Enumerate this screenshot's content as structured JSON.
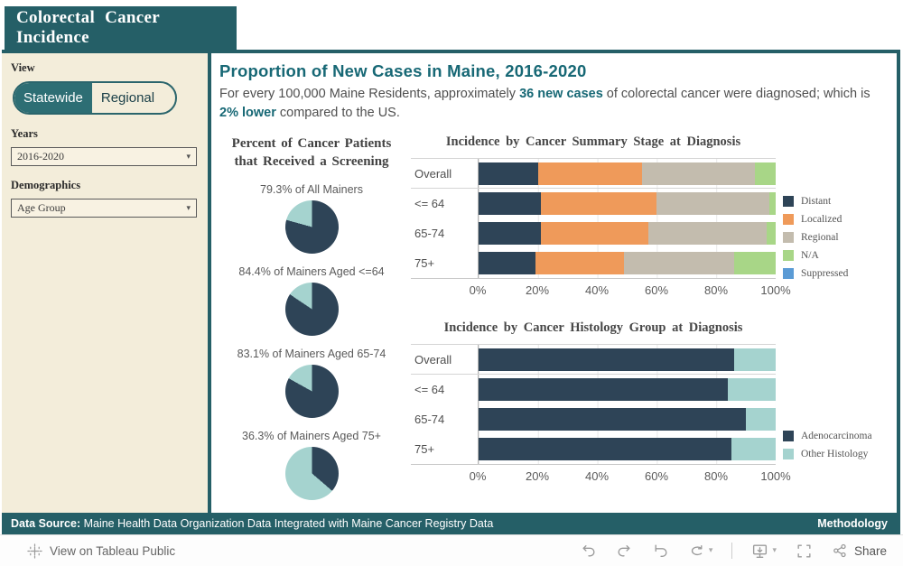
{
  "header": {
    "title": "Colorectal Cancer Incidence"
  },
  "sidebar": {
    "view_label": "View",
    "view_options": [
      {
        "label": "Statewide",
        "selected": true
      },
      {
        "label": "Regional",
        "selected": false
      }
    ],
    "years_label": "Years",
    "years_value": "2016-2020",
    "demographics_label": "Demographics",
    "demographics_value": "Age Group"
  },
  "main": {
    "title": "Proportion of New Cases in Maine, 2016-2020",
    "subtitle": {
      "p1": "For every 100,000 Maine Residents, approximately ",
      "b1": "36 new cases",
      "p2": " of colorectal cancer were diagnosed; which is ",
      "b2": "2% lower",
      "p3": " compared to the US."
    }
  },
  "colors": {
    "teal_frame": "#255f67",
    "toggle_active": "#2d6e74",
    "sidebar_cream": "#f3edda",
    "title_teal": "#176875",
    "navy": "#2e4457",
    "orange": "#ef9a5a",
    "tan": "#c3bcae",
    "green": "#a8d687",
    "blue": "#5b9bd5",
    "light_teal": "#a5d3cf"
  },
  "chart_data": [
    {
      "type": "pie",
      "title": "Percent of Cancer Patients that Received a Screening",
      "slice_colors": {
        "screened": "#2e4457",
        "not_screened": "#a5d3cf"
      },
      "pies": [
        {
          "label": "79.3% of All Mainers",
          "value": 79.3
        },
        {
          "label": "84.4% of Mainers Aged <=64",
          "value": 84.4
        },
        {
          "label": "83.1% of Mainers Aged 65-74",
          "value": 83.1
        },
        {
          "label": "36.3% of Mainers Aged 75+",
          "value": 36.3
        }
      ]
    },
    {
      "type": "bar",
      "stacked": true,
      "orientation": "horizontal",
      "title": "Incidence by Cancer Summary Stage at Diagnosis",
      "categories": [
        "Overall",
        "<= 64",
        "65-74",
        "75+"
      ],
      "series": [
        {
          "name": "Distant",
          "color": "#2e4457",
          "values": [
            20,
            21,
            21,
            19
          ]
        },
        {
          "name": "Localized",
          "color": "#ef9a5a",
          "values": [
            35,
            39,
            36,
            30
          ]
        },
        {
          "name": "Regional",
          "color": "#c3bcae",
          "values": [
            38,
            38,
            40,
            37
          ]
        },
        {
          "name": "N/A",
          "color": "#a8d687",
          "values": [
            7,
            2,
            3,
            14
          ]
        },
        {
          "name": "Suppressed",
          "color": "#5b9bd5",
          "values": [
            0,
            0,
            0,
            0
          ]
        }
      ],
      "x_ticks": [
        "0%",
        "20%",
        "40%",
        "60%",
        "80%",
        "100%"
      ],
      "xlim": [
        0,
        100
      ],
      "legend_position": "right"
    },
    {
      "type": "bar",
      "stacked": true,
      "orientation": "horizontal",
      "title": "Incidence by Cancer Histology Group at Diagnosis",
      "categories": [
        "Overall",
        "<= 64",
        "65-74",
        "75+"
      ],
      "series": [
        {
          "name": "Adenocarcinoma",
          "color": "#2e4457",
          "values": [
            86,
            84,
            90,
            85
          ]
        },
        {
          "name": "Other Histology",
          "color": "#a5d3cf",
          "values": [
            14,
            16,
            10,
            15
          ]
        }
      ],
      "x_ticks": [
        "0%",
        "20%",
        "40%",
        "60%",
        "80%",
        "100%"
      ],
      "xlim": [
        0,
        100
      ],
      "legend_position": "right"
    }
  ],
  "footer": {
    "data_source_label": "Data Source:",
    "data_source_text": " Maine Health Data Organization Data Integrated with Maine Cancer Registry Data",
    "methodology": "Methodology"
  },
  "toolbar": {
    "view_on_tableau": "View on Tableau Public",
    "share": "Share"
  }
}
